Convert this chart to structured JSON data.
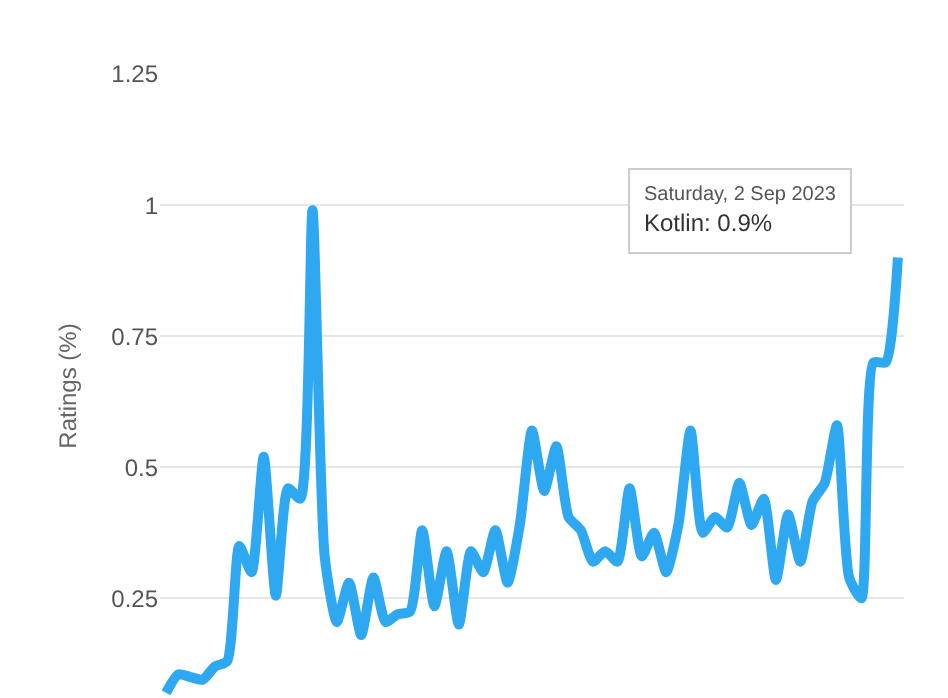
{
  "chart_data": {
    "type": "line",
    "ylabel": "Ratings (%)",
    "categories": [
      null,
      null,
      null,
      null,
      null,
      null,
      null,
      null,
      null,
      null,
      null,
      null,
      null,
      null,
      null,
      null,
      null,
      null,
      null,
      null,
      null,
      null,
      null,
      null,
      null,
      null,
      null,
      null,
      null,
      null,
      null,
      null,
      null,
      null,
      null,
      null,
      null,
      null,
      null,
      null,
      null,
      null,
      null,
      null,
      null,
      null,
      null,
      null,
      null,
      null,
      null,
      null,
      null,
      null,
      null,
      null,
      null,
      null,
      null,
      null,
      null
    ],
    "series": [
      {
        "color": "#2ea8f0",
        "values": [
          0.07,
          0.105,
          0.1,
          0.095,
          0.12,
          0.13,
          0.35,
          0.3,
          0.52,
          0.255,
          0.46,
          0.44,
          0.99,
          0.33,
          0.205,
          0.28,
          0.18,
          0.29,
          0.205,
          0.22,
          0.225,
          0.38,
          0.235,
          0.34,
          0.2,
          0.34,
          0.3,
          0.38,
          0.28,
          0.39,
          0.57,
          0.455,
          0.54,
          0.405,
          0.38,
          0.32,
          0.34,
          0.32,
          0.46,
          0.33,
          0.375,
          0.3,
          0.39,
          0.57,
          0.375,
          0.405,
          0.385,
          0.47,
          0.39,
          0.44,
          0.285,
          0.41,
          0.32,
          0.435,
          0.47,
          0.58,
          0.29,
          0.25,
          0.7,
          0.7,
          0.9
        ]
      }
    ],
    "annotations": [
      "Saturday, 2 Sep 2023",
      "Kotlin: 0.9%"
    ],
    "ylim": [
      0.06,
      1.25
    ],
    "yticks": [
      0.25,
      0.5,
      0.75,
      1,
      1.25
    ],
    "grid": "y",
    "tick_labels": "y",
    "marker": "none",
    "line_style": "solid"
  }
}
